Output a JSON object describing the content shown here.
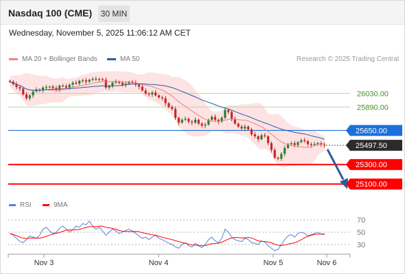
{
  "header": {
    "title": "Nasdaq 100 (CME)",
    "timeframe": "30 MIN",
    "datetime": "Wednesday, November 5, 2025 11:06:12 AM CET"
  },
  "legend": {
    "ma20_bollinger": "MA 20 + Bollinger Bands",
    "ma50": "MA 50",
    "rsi": "RSI",
    "rsi_ma": "9MA"
  },
  "credit": "Research © 2025 Trading Central",
  "colors": {
    "bull": "#2e7d32",
    "bear": "#c62828",
    "ma20": "#f08080",
    "ma50": "#2c5aa0",
    "band": "#fcd9d9",
    "resistance": "#1e6fd9",
    "support": "#ff0000",
    "target_line": "#b4d9a5",
    "rsi_line": "#5b7fd6",
    "arrow": "#2c5aa0"
  },
  "chart_data": [
    {
      "type": "candlestick",
      "x": [
        "Nov 3",
        "Nov 4",
        "Nov 5",
        "Nov 6"
      ],
      "price_axis": [
        26030.0,
        25890.0,
        25650.0,
        25497.5,
        25300.0,
        25100.0
      ],
      "levels": {
        "targets": [
          "26030.00",
          "25890.00"
        ],
        "resistance": "25650.00",
        "current": "25497.50",
        "supports": [
          "25300.00",
          "25100.00"
        ]
      },
      "ylim": [
        24950,
        26300
      ],
      "series_close": [
        26150,
        26125,
        26095,
        26080,
        26020,
        25980,
        26010,
        26050,
        26070,
        26060,
        26090,
        26095,
        26100,
        26085,
        26070,
        26110,
        26105,
        26090,
        26120,
        26140,
        26130,
        26160,
        26165,
        26150,
        26170,
        26180,
        26180,
        26175,
        26170,
        26090,
        26110,
        26140,
        26150,
        26140,
        26120,
        26130,
        26150,
        26140,
        26120,
        26100,
        26060,
        26030,
        26020,
        26040,
        26010,
        25990,
        25980,
        25930,
        25890,
        25870,
        25780,
        25730,
        25760,
        25770,
        25740,
        25730,
        25760,
        25720,
        25700,
        25710,
        25760,
        25790,
        25760,
        25740,
        25780,
        25860,
        25840,
        25770,
        25720,
        25690,
        25670,
        25690,
        25660,
        25610,
        25590,
        25560,
        25600,
        25590,
        25520,
        25450,
        25370,
        25360,
        25410,
        25470,
        25510,
        25520,
        25500,
        25530,
        25550,
        25540,
        25510,
        25500,
        25510,
        25520,
        25505,
        25497.5
      ],
      "ma20_close_hint": "MA 20",
      "ma50_close_hint": "MA 50"
    },
    {
      "type": "line",
      "name": "RSI",
      "ylim": [
        20,
        80
      ],
      "yticks": [
        70,
        50,
        30
      ],
      "values": [
        48,
        45,
        40,
        35,
        33,
        38,
        44,
        42,
        40,
        45,
        55,
        58,
        52,
        48,
        50,
        56,
        60,
        55,
        50,
        54,
        60,
        58,
        64,
        62,
        68,
        60,
        55,
        58,
        52,
        45,
        50,
        55,
        52,
        48,
        50,
        53,
        55,
        52,
        48,
        44,
        40,
        42,
        38,
        42,
        45,
        40,
        38,
        35,
        32,
        30,
        26,
        24,
        30,
        33,
        28,
        26,
        32,
        28,
        25,
        30,
        38,
        42,
        36,
        33,
        40,
        55,
        50,
        42,
        38,
        36,
        35,
        40,
        38,
        33,
        32,
        30,
        36,
        34,
        28,
        24,
        20,
        22,
        30,
        38,
        44,
        46,
        42,
        48,
        50,
        48,
        44,
        46,
        48,
        50,
        47,
        46
      ]
    }
  ]
}
